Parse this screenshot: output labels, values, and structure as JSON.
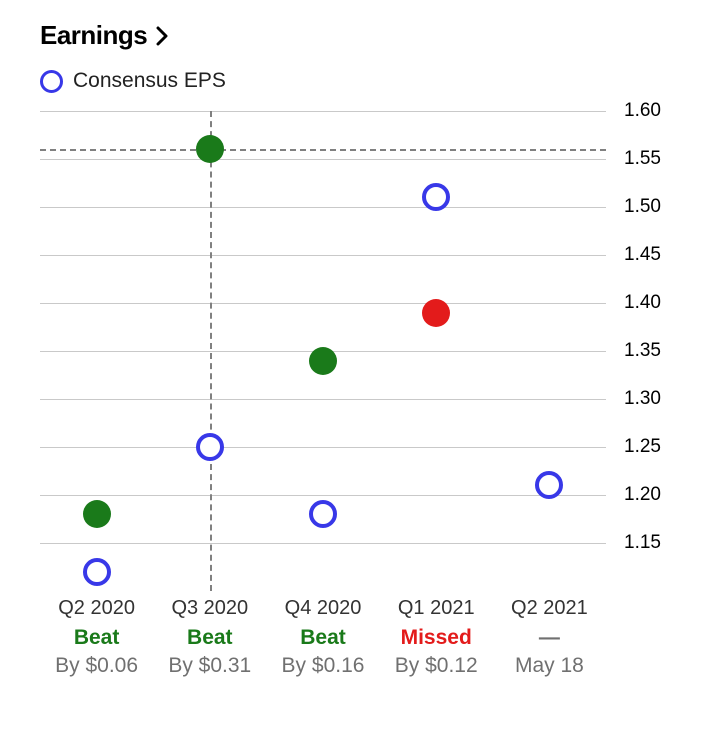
{
  "title": "Earnings",
  "legend": {
    "label": "Consensus EPS",
    "stroke": "#3838e8"
  },
  "chart": {
    "type": "scatter",
    "ylim": [
      1.1,
      1.6
    ],
    "ytick_step": 0.05,
    "yticks": [
      "1.60",
      "1.55",
      "1.50",
      "1.45",
      "1.40",
      "1.35",
      "1.30",
      "1.25",
      "1.20",
      "1.15"
    ],
    "grid_color": "#c9c9c9",
    "crosshair_color": "#808080",
    "crosshair": {
      "x_index": 1,
      "y": 1.56
    },
    "marker_size": 28,
    "hollow_border": 4,
    "colors": {
      "consensus": "#3838e8",
      "beat": "#1a7a1a",
      "missed": "#e31b1b",
      "by_text": "#707070"
    },
    "quarters": [
      {
        "label": "Q2 2020",
        "consensus": 1.12,
        "actual": 1.18,
        "result": "Beat",
        "by": "By $0.06",
        "result_color": "#1a7a1a",
        "actual_color": "#1a7a1a"
      },
      {
        "label": "Q3 2020",
        "consensus": 1.25,
        "actual": 1.56,
        "result": "Beat",
        "by": "By $0.31",
        "result_color": "#1a7a1a",
        "actual_color": "#1a7a1a"
      },
      {
        "label": "Q4 2020",
        "consensus": 1.18,
        "actual": 1.34,
        "result": "Beat",
        "by": "By $0.16",
        "result_color": "#1a7a1a",
        "actual_color": "#1a7a1a"
      },
      {
        "label": "Q1 2021",
        "consensus": 1.51,
        "actual": 1.39,
        "result": "Missed",
        "by": "By $0.12",
        "result_color": "#e31b1b",
        "actual_color": "#e31b1b"
      },
      {
        "label": "Q2 2021",
        "consensus": 1.21,
        "actual": null,
        "result": "—",
        "by": "May 18",
        "result_color": "#707070",
        "actual_color": null
      }
    ]
  }
}
